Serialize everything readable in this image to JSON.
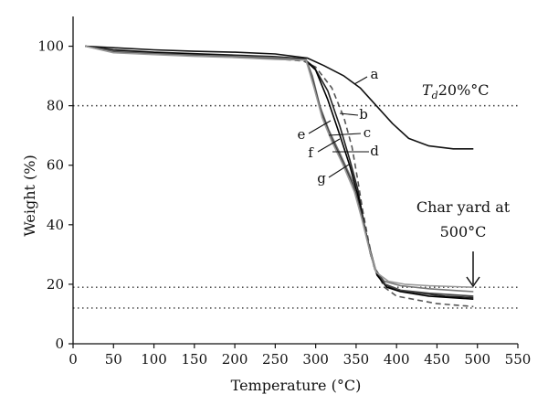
{
  "chart_data": {
    "type": "line",
    "title": "",
    "xlabel": "Temperature (°C)",
    "ylabel": "Weight (%)",
    "xlim": [
      0,
      550
    ],
    "ylim": [
      0,
      110
    ],
    "x_ticks": [
      "0",
      "50",
      "100",
      "150",
      "200",
      "250",
      "300",
      "350",
      "400",
      "450",
      "500",
      "550"
    ],
    "y_ticks": [
      "0",
      "20",
      "40",
      "60",
      "80",
      "100"
    ],
    "grid": false,
    "reference_lines": [
      80,
      19,
      12
    ],
    "annotations": {
      "td_label": "Td20%°C",
      "char_line1": "Char yard at",
      "char_line2": "500°C"
    },
    "series": [
      {
        "name": "a",
        "color": "#111111",
        "dash": "solid",
        "points": [
          [
            15,
            100
          ],
          [
            50,
            99.5
          ],
          [
            100,
            98.8
          ],
          [
            150,
            98.3
          ],
          [
            200,
            98
          ],
          [
            250,
            97.4
          ],
          [
            290,
            96
          ],
          [
            310,
            93.5
          ],
          [
            335,
            90
          ],
          [
            355,
            86
          ],
          [
            375,
            80
          ],
          [
            395,
            74
          ],
          [
            415,
            69
          ],
          [
            440,
            66.5
          ],
          [
            470,
            65.5
          ],
          [
            495,
            65.5
          ]
        ]
      },
      {
        "name": "b",
        "color": "#555555",
        "dash": "dashed",
        "points": [
          [
            15,
            100
          ],
          [
            50,
            98.5
          ],
          [
            100,
            97.5
          ],
          [
            150,
            97
          ],
          [
            200,
            96.5
          ],
          [
            250,
            95.8
          ],
          [
            285,
            95
          ],
          [
            300,
            93
          ],
          [
            320,
            86
          ],
          [
            335,
            76
          ],
          [
            345,
            66
          ],
          [
            352,
            55
          ],
          [
            358,
            45
          ],
          [
            365,
            35
          ],
          [
            372,
            26
          ],
          [
            385,
            19
          ],
          [
            400,
            16
          ],
          [
            420,
            15
          ],
          [
            450,
            13.5
          ],
          [
            495,
            12.5
          ]
        ]
      },
      {
        "name": "c",
        "color": "#222222",
        "dash": "solid",
        "points": [
          [
            15,
            100
          ],
          [
            50,
            98.8
          ],
          [
            100,
            98
          ],
          [
            150,
            97.5
          ],
          [
            200,
            97
          ],
          [
            250,
            96.5
          ],
          [
            285,
            95.8
          ],
          [
            298,
            93
          ],
          [
            315,
            85
          ],
          [
            330,
            73
          ],
          [
            342,
            62
          ],
          [
            352,
            52
          ],
          [
            360,
            40
          ],
          [
            367,
            31
          ],
          [
            375,
            24
          ],
          [
            385,
            20
          ],
          [
            400,
            18
          ],
          [
            430,
            17
          ],
          [
            460,
            16
          ],
          [
            495,
            15.5
          ]
        ]
      },
      {
        "name": "d",
        "color": "#000000",
        "dash": "solid",
        "points": [
          [
            15,
            100
          ],
          [
            50,
            98.5
          ],
          [
            100,
            97.8
          ],
          [
            150,
            97.3
          ],
          [
            200,
            96.8
          ],
          [
            250,
            96.3
          ],
          [
            285,
            95.8
          ],
          [
            300,
            92
          ],
          [
            315,
            82
          ],
          [
            330,
            70
          ],
          [
            342,
            60
          ],
          [
            352,
            50
          ],
          [
            360,
            40
          ],
          [
            368,
            30
          ],
          [
            376,
            23
          ],
          [
            388,
            19
          ],
          [
            405,
            17.5
          ],
          [
            440,
            16
          ],
          [
            495,
            15
          ]
        ]
      },
      {
        "name": "e",
        "color": "#777777",
        "dash": "solid",
        "points": [
          [
            15,
            100
          ],
          [
            50,
            98.3
          ],
          [
            100,
            97.5
          ],
          [
            150,
            97
          ],
          [
            200,
            96.6
          ],
          [
            250,
            96.2
          ],
          [
            288,
            95.6
          ],
          [
            296,
            90
          ],
          [
            305,
            80
          ],
          [
            316,
            72
          ],
          [
            330,
            64
          ],
          [
            345,
            55
          ],
          [
            355,
            45
          ],
          [
            365,
            34
          ],
          [
            373,
            25
          ],
          [
            385,
            21
          ],
          [
            405,
            19.5
          ],
          [
            440,
            18.5
          ],
          [
            495,
            17.5
          ]
        ]
      },
      {
        "name": "f",
        "color": "#444444",
        "dash": "solid",
        "points": [
          [
            15,
            100
          ],
          [
            50,
            98
          ],
          [
            100,
            97.3
          ],
          [
            150,
            96.8
          ],
          [
            200,
            96.3
          ],
          [
            250,
            95.8
          ],
          [
            288,
            95.5
          ],
          [
            297,
            88
          ],
          [
            307,
            78
          ],
          [
            318,
            70
          ],
          [
            332,
            62
          ],
          [
            347,
            53
          ],
          [
            357,
            43
          ],
          [
            366,
            33
          ],
          [
            374,
            25
          ],
          [
            386,
            20
          ],
          [
            405,
            18
          ],
          [
            440,
            17
          ],
          [
            495,
            16
          ]
        ]
      },
      {
        "name": "g",
        "color": "#999999",
        "dash": "solid",
        "points": [
          [
            15,
            100
          ],
          [
            50,
            97.8
          ],
          [
            100,
            97.2
          ],
          [
            150,
            96.6
          ],
          [
            200,
            96.2
          ],
          [
            250,
            95.6
          ],
          [
            288,
            95.3
          ],
          [
            298,
            86
          ],
          [
            308,
            76
          ],
          [
            320,
            68
          ],
          [
            334,
            60
          ],
          [
            348,
            51
          ],
          [
            357,
            42
          ],
          [
            366,
            32
          ],
          [
            375,
            24
          ],
          [
            390,
            21
          ],
          [
            410,
            20
          ],
          [
            440,
            19.5
          ],
          [
            495,
            19
          ]
        ]
      }
    ]
  }
}
